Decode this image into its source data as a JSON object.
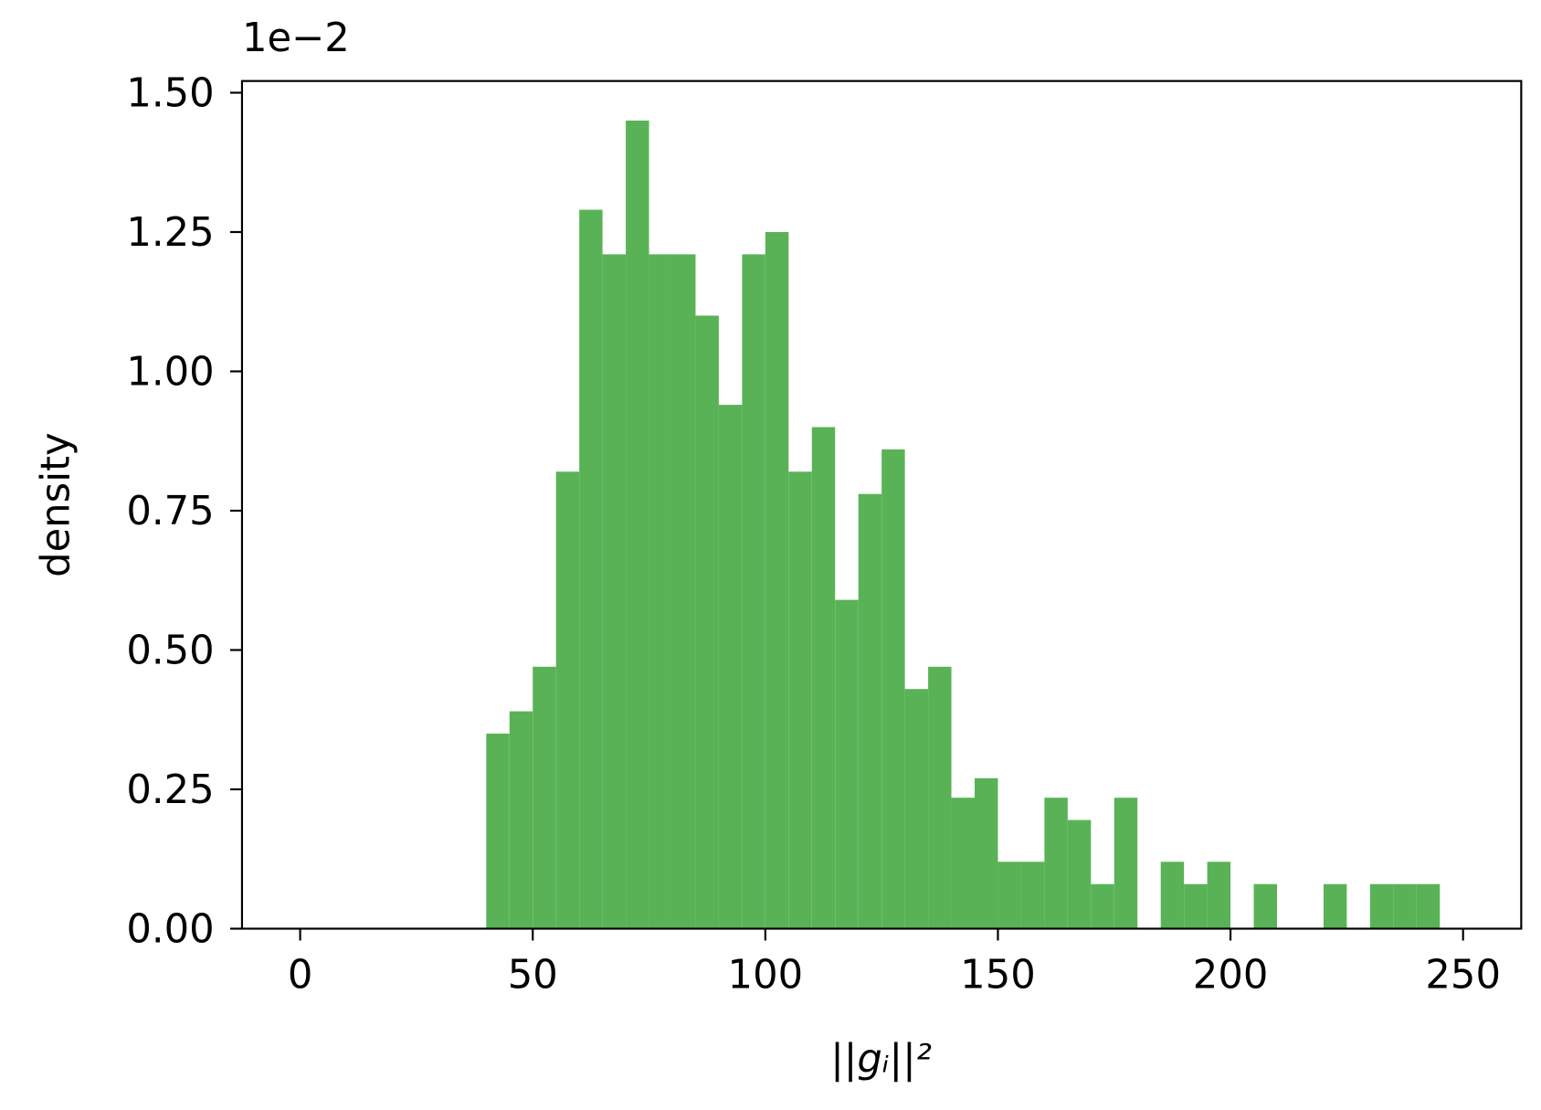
{
  "chart_data": {
    "type": "histogram",
    "xlabel": "||gᵢ||²",
    "ylabel": "density",
    "offset_text": "1e−2",
    "color": "#59b356",
    "bins": [
      40,
      45,
      50,
      55,
      60,
      65,
      70,
      75,
      80,
      85,
      90,
      95,
      100,
      105,
      110,
      115,
      120,
      125,
      130,
      135,
      140,
      145,
      150,
      155,
      160,
      165,
      170,
      175,
      180,
      185,
      190,
      195,
      200,
      205,
      210,
      215,
      220,
      225,
      230,
      235,
      240,
      245
    ],
    "values": [
      0.35,
      0.39,
      0.47,
      0.82,
      1.29,
      1.21,
      1.45,
      1.21,
      1.21,
      1.1,
      0.94,
      1.21,
      1.25,
      0.82,
      0.9,
      0.59,
      0.78,
      0.86,
      0.43,
      0.47,
      0.235,
      0.27,
      0.12,
      0.12,
      0.235,
      0.195,
      0.08,
      0.235,
      0,
      0.12,
      0.08,
      0.12,
      0,
      0.08,
      0,
      0,
      0.08,
      0,
      0.08,
      0.08,
      0.08
    ],
    "xlim": [
      -12.5,
      262.5
    ],
    "xticks": [
      0,
      50,
      100,
      150,
      200,
      250
    ],
    "ylim": [
      0,
      1.521
    ],
    "yticks": [
      {
        "value": 0,
        "label": "0.00"
      },
      {
        "value": 0.25,
        "label": "0.25"
      },
      {
        "value": 0.5,
        "label": "0.50"
      },
      {
        "value": 0.75,
        "label": "0.75"
      },
      {
        "value": 1,
        "label": "1.00"
      },
      {
        "value": 1.25,
        "label": "1.25"
      },
      {
        "value": 1.5,
        "label": "1.50"
      }
    ]
  }
}
